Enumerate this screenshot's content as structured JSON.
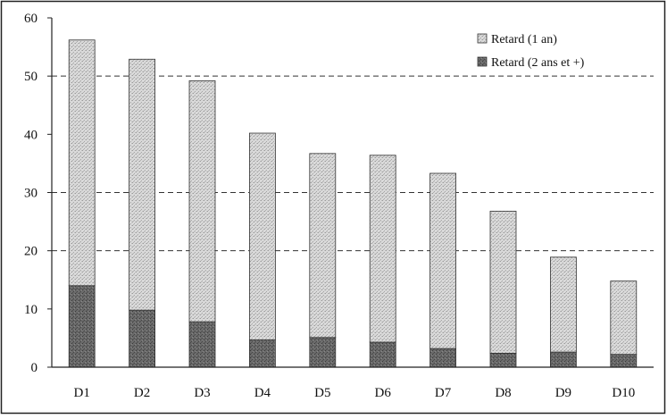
{
  "chart_data": {
    "type": "bar",
    "stacked": true,
    "categories": [
      "D1",
      "D2",
      "D3",
      "D4",
      "D5",
      "D6",
      "D7",
      "D8",
      "D9",
      "D10"
    ],
    "series": [
      {
        "name": "Retard (2 ans et +)",
        "values": [
          14.0,
          9.8,
          7.8,
          4.7,
          5.1,
          4.3,
          3.2,
          2.4,
          2.6,
          2.2
        ],
        "color": "#6e6e6e"
      },
      {
        "name": "Retard (1 an)",
        "values": [
          42.2,
          43.1,
          41.4,
          35.5,
          31.6,
          32.1,
          30.1,
          24.4,
          16.3,
          12.6
        ],
        "color": "#d4d4d4"
      }
    ],
    "totals": [
      56.2,
      52.9,
      49.2,
      40.2,
      36.7,
      36.4,
      33.3,
      26.8,
      18.9,
      14.8
    ],
    "yticks": [
      "0",
      "10",
      "20",
      "30",
      "40",
      "50",
      "60"
    ],
    "ylim": [
      0,
      60
    ],
    "grid": "dashed horizontal at 20, 30, 50",
    "legend": "top-right",
    "title": "",
    "xlabel": "",
    "ylabel": ""
  }
}
